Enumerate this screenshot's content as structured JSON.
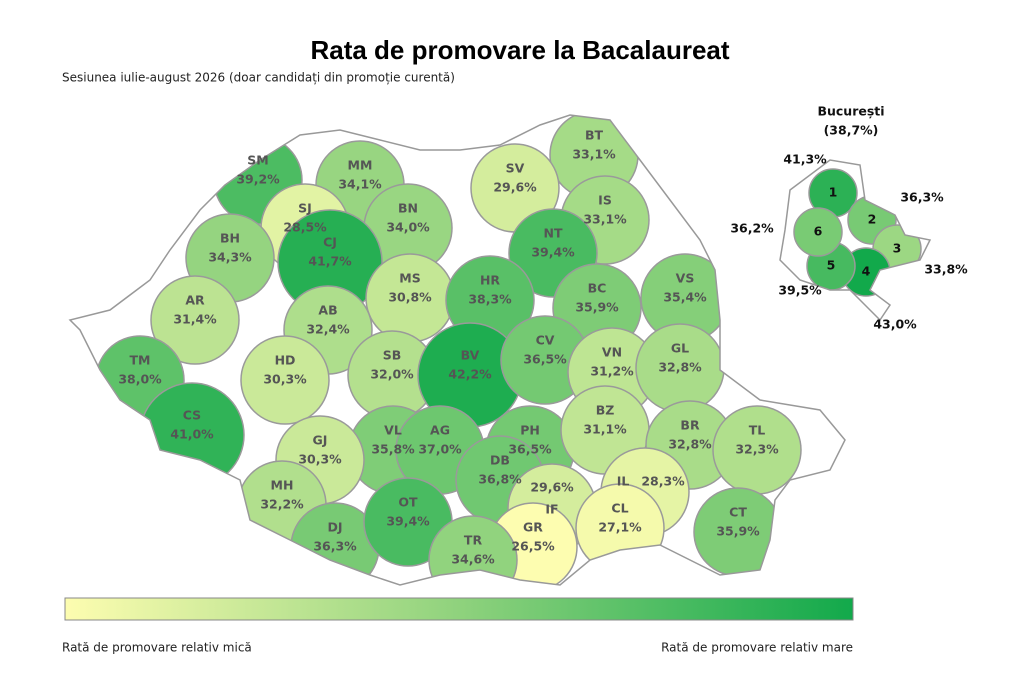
{
  "header": {
    "title": "Rata de promovare la Bacalaureat",
    "subtitle": "Sesiunea iulie-august 2026 (doar candidați din promoție curentă)"
  },
  "counties": [
    {
      "code": "SM",
      "value": "39,2%"
    },
    {
      "code": "MM",
      "value": "34,1%"
    },
    {
      "code": "BT",
      "value": "33,1%"
    },
    {
      "code": "SV",
      "value": "29,6%"
    },
    {
      "code": "SJ",
      "value": "28,5%"
    },
    {
      "code": "BN",
      "value": "34,0%"
    },
    {
      "code": "IS",
      "value": "33,1%"
    },
    {
      "code": "BH",
      "value": "34,3%"
    },
    {
      "code": "CJ",
      "value": "41,7%"
    },
    {
      "code": "NT",
      "value": "39,4%"
    },
    {
      "code": "MS",
      "value": "30,8%"
    },
    {
      "code": "HR",
      "value": "38,3%"
    },
    {
      "code": "BC",
      "value": "35,9%"
    },
    {
      "code": "VS",
      "value": "35,4%"
    },
    {
      "code": "AR",
      "value": "31,4%"
    },
    {
      "code": "AB",
      "value": "32,4%"
    },
    {
      "code": "TM",
      "value": "38,0%"
    },
    {
      "code": "HD",
      "value": "30,3%"
    },
    {
      "code": "SB",
      "value": "32,0%"
    },
    {
      "code": "BV",
      "value": "42,2%"
    },
    {
      "code": "CV",
      "value": "36,5%"
    },
    {
      "code": "VN",
      "value": "31,2%"
    },
    {
      "code": "GL",
      "value": "32,8%"
    },
    {
      "code": "CS",
      "value": "41,0%"
    },
    {
      "code": "VL",
      "value": "35,8%"
    },
    {
      "code": "AG",
      "value": "37,0%"
    },
    {
      "code": "PH",
      "value": "36,5%"
    },
    {
      "code": "BZ",
      "value": "31,1%"
    },
    {
      "code": "BR",
      "value": "32,8%"
    },
    {
      "code": "TL",
      "value": "32,3%"
    },
    {
      "code": "GJ",
      "value": "30,3%"
    },
    {
      "code": "MH",
      "value": "32,2%"
    },
    {
      "code": "DB",
      "value": "36,8%"
    },
    {
      "code": "IL",
      "value": "28,3%"
    },
    {
      "code": "IF",
      "value": "29,6%"
    },
    {
      "code": "CL",
      "value": "27,1%"
    },
    {
      "code": "GR",
      "value": "26,5%"
    },
    {
      "code": "CT",
      "value": "35,9%"
    },
    {
      "code": "DJ",
      "value": "36,3%"
    },
    {
      "code": "OT",
      "value": "39,4%"
    },
    {
      "code": "TR",
      "value": "34,6%"
    }
  ],
  "bucharest": {
    "name": "București",
    "value": "(38,7%)",
    "sectors": [
      {
        "number": "1",
        "value": "41,3%"
      },
      {
        "number": "2",
        "value": "36,3%"
      },
      {
        "number": "3",
        "value": "33,8%"
      },
      {
        "number": "4",
        "value": "43,0%"
      },
      {
        "number": "5",
        "value": "39,5%"
      },
      {
        "number": "6",
        "value": "36,2%"
      }
    ]
  },
  "legend": {
    "low": "Rată de promovare relativ mică",
    "high": "Rată de promovare relativ mare"
  }
}
